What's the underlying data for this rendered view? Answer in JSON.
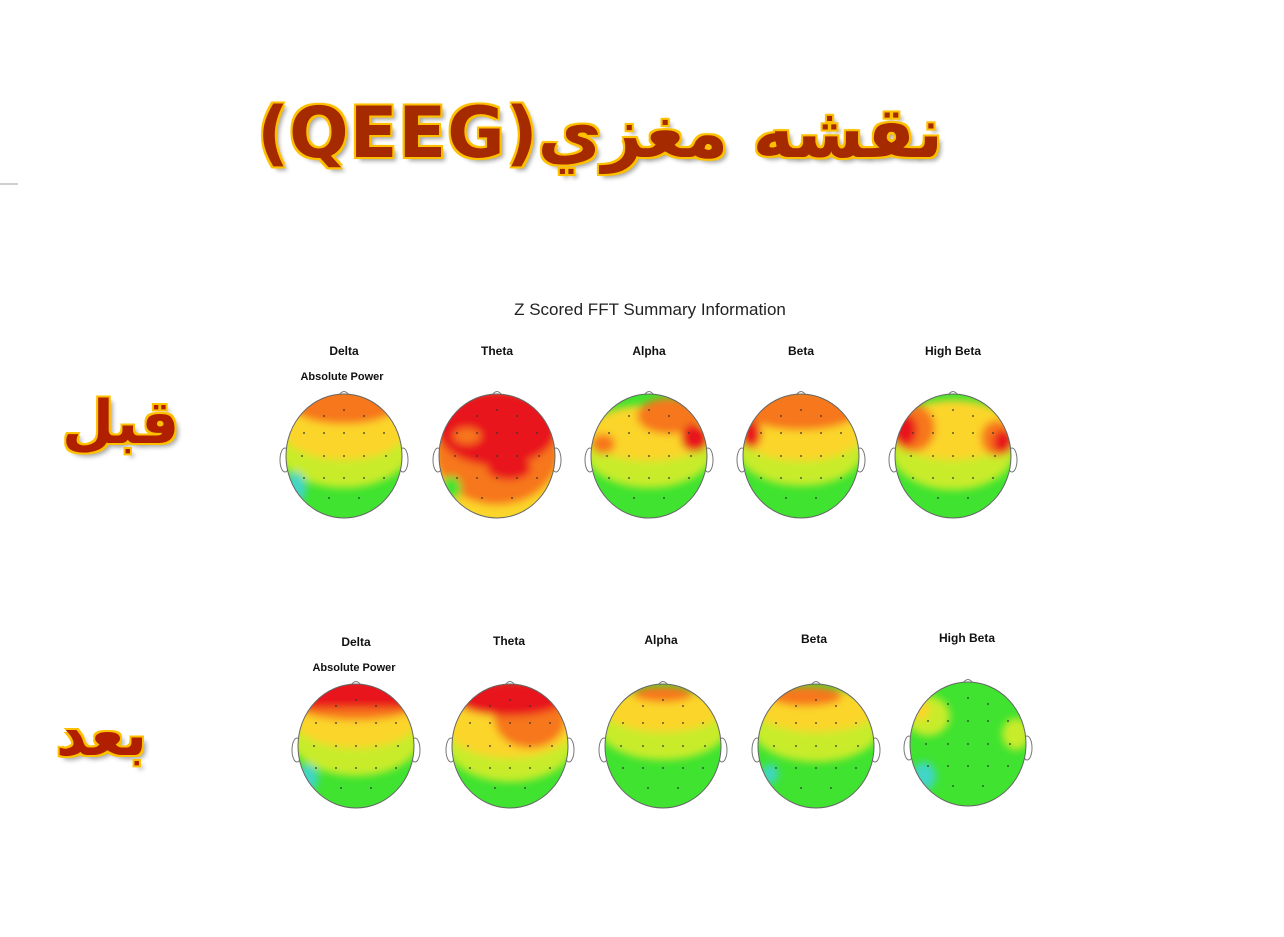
{
  "title": "نقشه مغزي(QEEG)",
  "before_label": "قبل",
  "after_label": "بعد",
  "summary_title": "Z Scored FFT Summary Information",
  "bands": [
    "Delta",
    "Theta",
    "Alpha",
    "Beta",
    "High Beta"
  ],
  "subtitle": "Absolute Power",
  "colors": {
    "red": "#e8161a",
    "orange": "#f7771b",
    "yellow": "#fbd52a",
    "yellow_green": "#c8ec2a",
    "green": "#3fe330",
    "cyan": "#3fd5c6"
  }
}
